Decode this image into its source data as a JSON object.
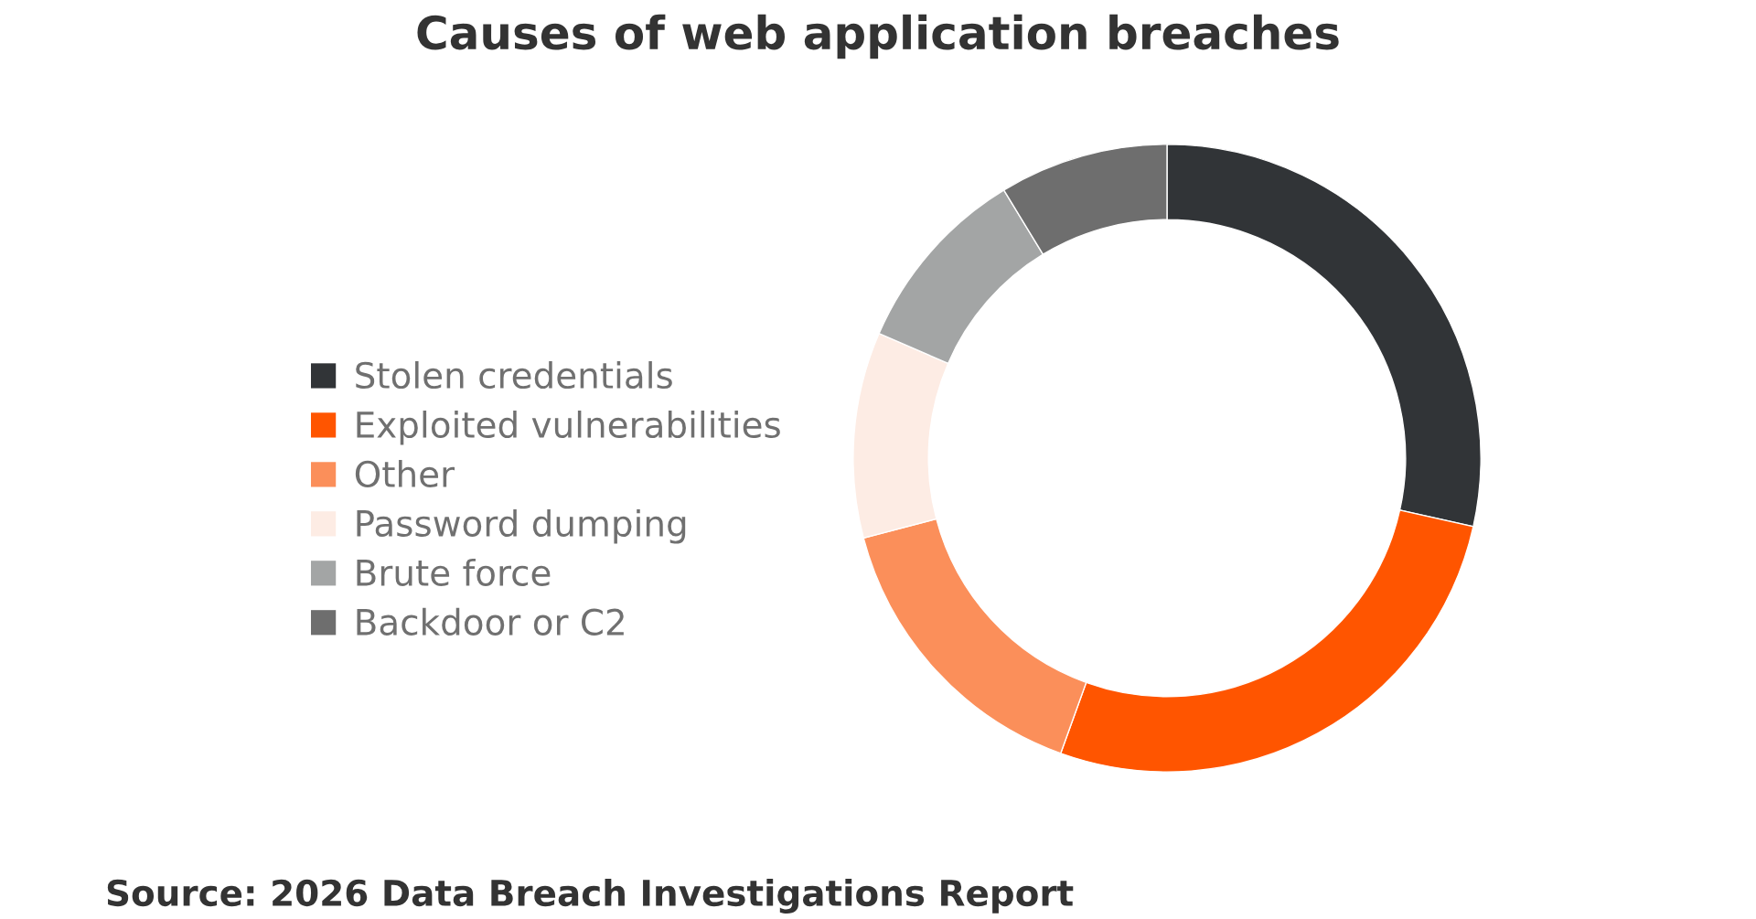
{
  "chart_data": {
    "type": "donut",
    "title": "Causes of web application breaches",
    "categories": [
      "Stolen credentials",
      "Exploited vulnerabilities",
      "Other",
      "Password dumping",
      "Brute force",
      "Backdoor or C2"
    ],
    "values": [
      28.5,
      27,
      15.4,
      10.6,
      9.8,
      8.7
    ],
    "colors": [
      "#313437",
      "#ff5500",
      "#fb8f5a",
      "#fdece4",
      "#a3a5a5",
      "#6e6e6e"
    ],
    "legend": "left",
    "annotations": [
      "Source: 2026 Data Breach Investigations Report"
    ]
  }
}
